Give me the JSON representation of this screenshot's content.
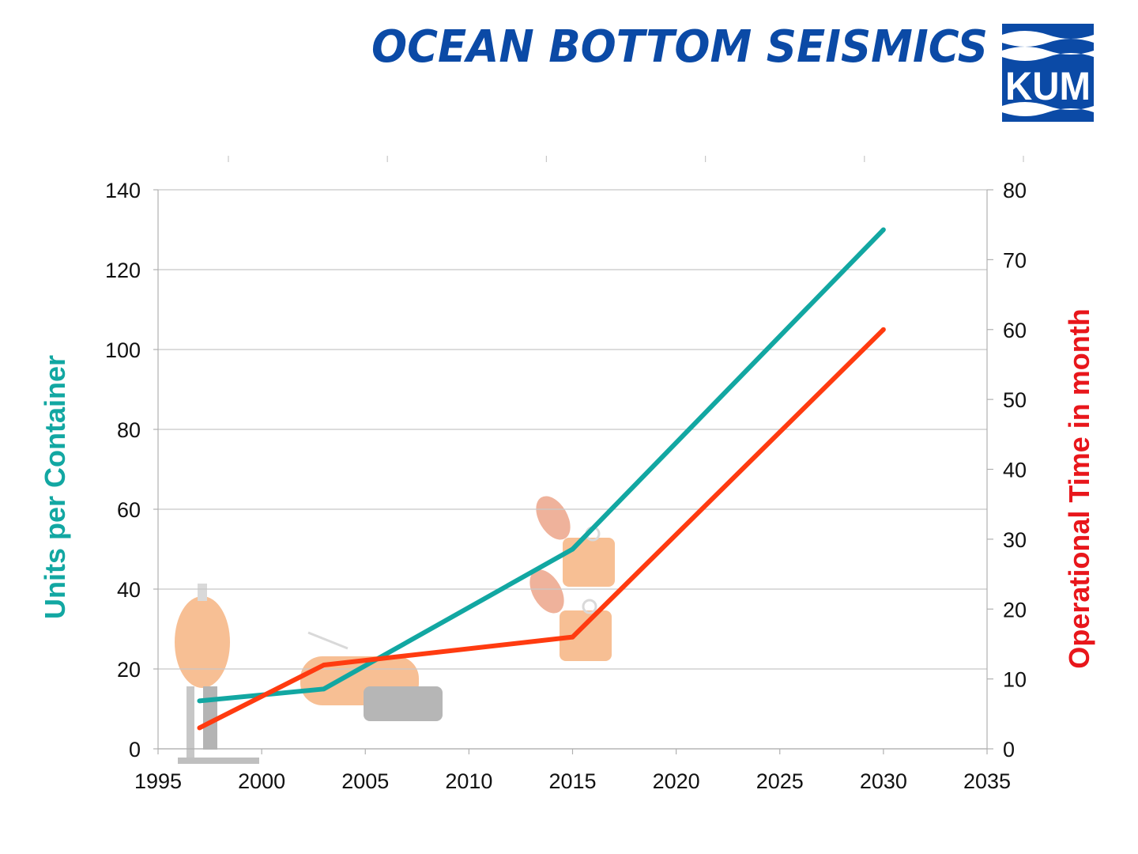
{
  "header": {
    "title": "OCEAN BOTTOM SEISMICS",
    "logo_text": "KUM",
    "title_color": "#0b4aa6",
    "logo_color": "#0b4aa6"
  },
  "chart_data": {
    "type": "line",
    "x": [
      1997,
      2003,
      2015,
      2030
    ],
    "xlim": [
      1995,
      2035
    ],
    "xticks": [
      "1995",
      "2000",
      "2005",
      "2010",
      "2015",
      "2020",
      "2025",
      "2030",
      "2035"
    ],
    "grid": true,
    "series": [
      {
        "name": "Units per Container",
        "axis": "left",
        "color": "#12a7a2",
        "values": [
          12,
          15,
          50,
          130
        ]
      },
      {
        "name": "Operational Time in month",
        "axis": "right",
        "color": "#ff3b10",
        "values": [
          3,
          12,
          16,
          60
        ]
      }
    ],
    "ylabel_left": "Units per Container",
    "ylabel_right": "Operational Time in month",
    "ylim_left": [
      0,
      140
    ],
    "yticks_left": [
      "0",
      "20",
      "40",
      "60",
      "80",
      "100",
      "120",
      "140"
    ],
    "ylim_right": [
      0,
      80
    ],
    "yticks_right": [
      "0",
      "10",
      "20",
      "30",
      "40",
      "50",
      "60",
      "70",
      "80"
    ]
  }
}
